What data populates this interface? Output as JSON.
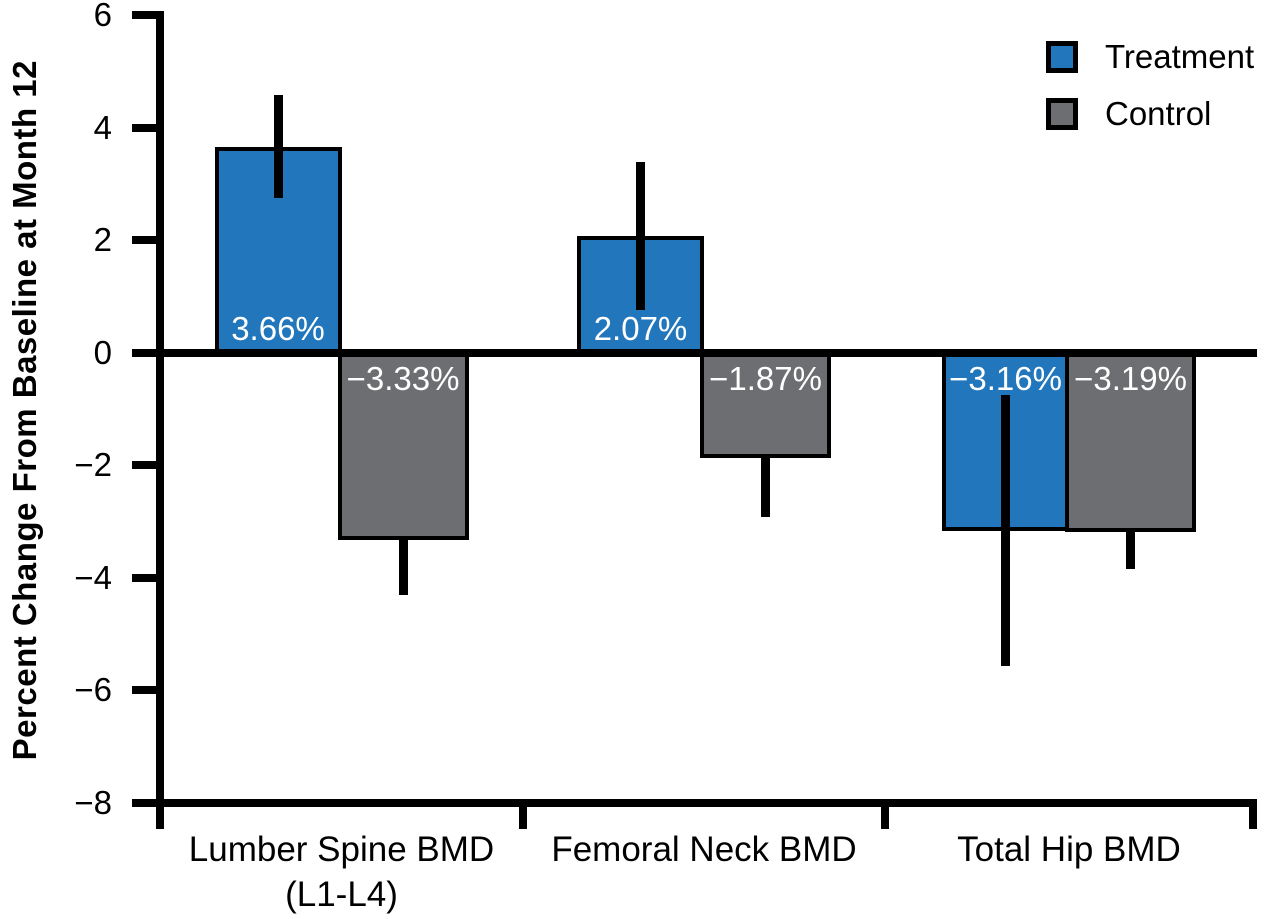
{
  "chart_data": {
    "type": "bar",
    "title": "",
    "xlabel": "",
    "ylabel": "Percent Change From Baseline at Month 12",
    "ylim": [
      -8,
      6
    ],
    "grid": false,
    "background": "#ffffff",
    "axis_color": "#000000",
    "value_label_color": "#ffffff",
    "ytick_values": [
      6,
      4,
      2,
      0,
      -2,
      -4,
      -6,
      -8
    ],
    "ytick_labels": [
      "6",
      "4",
      "2",
      "0",
      "−2",
      "−4",
      "−6",
      "−8"
    ],
    "categories": [
      "Lumber Spine BMD (L1-L4)",
      "Femoral Neck BMD",
      "Total Hip BMD"
    ],
    "category_label_lines": [
      [
        "Lumber Spine BMD",
        "(L1-L4)"
      ],
      [
        "Femoral Neck BMD"
      ],
      [
        "Total Hip BMD"
      ]
    ],
    "series": [
      {
        "name": "Treatment",
        "color": "#2277bc",
        "values": [
          3.66,
          2.07,
          -3.16
        ],
        "value_labels": [
          "3.66%",
          "2.07%",
          "−3.16%"
        ],
        "errors": [
          0.92,
          1.31,
          2.4
        ],
        "error_bars_in_front": true
      },
      {
        "name": "Control",
        "color": "#6d6e71",
        "values": [
          -3.33,
          -1.87,
          -3.19
        ],
        "value_labels": [
          "−3.33%",
          "−1.87%",
          "−3.19%"
        ],
        "errors": [
          0.97,
          1.05,
          0.65
        ],
        "error_bars_in_front": false
      }
    ],
    "legend": {
      "position": "top-right",
      "entries": [
        {
          "label": "Treatment",
          "color": "#2277bc"
        },
        {
          "label": "Control",
          "color": "#6d6e71"
        }
      ]
    }
  }
}
